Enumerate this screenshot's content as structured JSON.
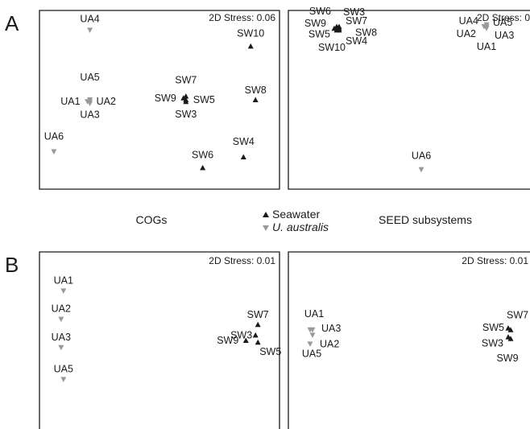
{
  "figure": {
    "panel_a_letter": "A",
    "panel_b_letter": "B",
    "caption_left": "COGs",
    "caption_right": "SEED subsystems",
    "legend": [
      {
        "label": "Seawater",
        "marker": "up-triangle",
        "color": "#1a1a1a",
        "italic": false
      },
      {
        "label": "U. australis",
        "marker": "down-triangle",
        "color": "#999999",
        "italic": true
      }
    ]
  },
  "chart_data": [
    {
      "type": "scatter",
      "id": "A-left",
      "stress_label": "2D Stress: 0.06",
      "points": [
        {
          "label": "UA4",
          "group": "ua",
          "x": 0.21,
          "y": 0.89
        },
        {
          "label": "UA1",
          "group": "ua",
          "x": 0.2,
          "y": 0.49
        },
        {
          "label": "UA2",
          "group": "ua",
          "x": 0.21,
          "y": 0.49
        },
        {
          "label": "UA3",
          "group": "ua",
          "x": 0.21,
          "y": 0.48
        },
        {
          "label": "UA5",
          "group": "ua",
          "x": 0.21,
          "y": 0.5
        },
        {
          "label": "UA6",
          "group": "ua",
          "x": 0.06,
          "y": 0.21
        },
        {
          "label": "SW10",
          "group": "sw",
          "x": 0.88,
          "y": 0.8
        },
        {
          "label": "SW7",
          "group": "sw",
          "x": 0.61,
          "y": 0.52
        },
        {
          "label": "SW9",
          "group": "sw",
          "x": 0.6,
          "y": 0.51
        },
        {
          "label": "SW5",
          "group": "sw",
          "x": 0.61,
          "y": 0.5
        },
        {
          "label": "SW3",
          "group": "sw",
          "x": 0.61,
          "y": 0.49
        },
        {
          "label": "SW8",
          "group": "sw",
          "x": 0.9,
          "y": 0.5
        },
        {
          "label": "SW6",
          "group": "sw",
          "x": 0.68,
          "y": 0.12
        },
        {
          "label": "SW4",
          "group": "sw",
          "x": 0.85,
          "y": 0.18
        }
      ]
    },
    {
      "type": "scatter",
      "id": "A-right",
      "stress_label": "2D Stress: 0",
      "points": [
        {
          "label": "SW6",
          "group": "sw",
          "x": 0.2,
          "y": 0.91
        },
        {
          "label": "SW3",
          "group": "sw",
          "x": 0.21,
          "y": 0.91
        },
        {
          "label": "SW9",
          "group": "sw",
          "x": 0.19,
          "y": 0.9
        },
        {
          "label": "SW7",
          "group": "sw",
          "x": 0.21,
          "y": 0.9
        },
        {
          "label": "SW5",
          "group": "sw",
          "x": 0.2,
          "y": 0.89
        },
        {
          "label": "SW8",
          "group": "sw",
          "x": 0.21,
          "y": 0.89
        },
        {
          "label": "SW4",
          "group": "sw",
          "x": 0.21,
          "y": 0.9
        },
        {
          "label": "SW10",
          "group": "sw",
          "x": 0.2,
          "y": 0.9
        },
        {
          "label": "UA4",
          "group": "ua",
          "x": 0.82,
          "y": 0.92
        },
        {
          "label": "UA5",
          "group": "ua",
          "x": 0.82,
          "y": 0.91
        },
        {
          "label": "UA2",
          "group": "ua",
          "x": 0.81,
          "y": 0.91
        },
        {
          "label": "UA3",
          "group": "ua",
          "x": 0.82,
          "y": 0.9
        },
        {
          "label": "UA1",
          "group": "ua",
          "x": 0.82,
          "y": 0.91
        },
        {
          "label": "UA6",
          "group": "ua",
          "x": 0.55,
          "y": 0.11
        }
      ]
    },
    {
      "type": "scatter",
      "id": "B-left",
      "stress_label": "2D Stress: 0.01",
      "points": [
        {
          "label": "UA1",
          "group": "ua",
          "x": 0.1,
          "y": 0.78
        },
        {
          "label": "UA2",
          "group": "ua",
          "x": 0.09,
          "y": 0.62
        },
        {
          "label": "UA3",
          "group": "ua",
          "x": 0.09,
          "y": 0.46
        },
        {
          "label": "UA5",
          "group": "ua",
          "x": 0.1,
          "y": 0.28
        },
        {
          "label": "SW7",
          "group": "sw",
          "x": 0.91,
          "y": 0.59
        },
        {
          "label": "SW3",
          "group": "sw",
          "x": 0.9,
          "y": 0.53
        },
        {
          "label": "SW9",
          "group": "sw",
          "x": 0.86,
          "y": 0.5
        },
        {
          "label": "SW5",
          "group": "sw",
          "x": 0.91,
          "y": 0.49
        }
      ]
    },
    {
      "type": "scatter",
      "id": "B-right",
      "stress_label": "2D Stress: 0.01",
      "points": [
        {
          "label": "UA1",
          "group": "ua",
          "x": 0.09,
          "y": 0.56
        },
        {
          "label": "UA3",
          "group": "ua",
          "x": 0.1,
          "y": 0.56
        },
        {
          "label": "UA2",
          "group": "ua",
          "x": 0.1,
          "y": 0.53
        },
        {
          "label": "UA5",
          "group": "ua",
          "x": 0.09,
          "y": 0.48
        },
        {
          "label": "SW7",
          "group": "sw",
          "x": 0.91,
          "y": 0.57
        },
        {
          "label": "SW5",
          "group": "sw",
          "x": 0.92,
          "y": 0.56
        },
        {
          "label": "SW3",
          "group": "sw",
          "x": 0.91,
          "y": 0.52
        },
        {
          "label": "SW9",
          "group": "sw",
          "x": 0.92,
          "y": 0.51
        }
      ]
    }
  ],
  "colors": {
    "seawater": "#1a1a1a",
    "u_australis": "#999999",
    "frame": "#1a1a1a"
  }
}
